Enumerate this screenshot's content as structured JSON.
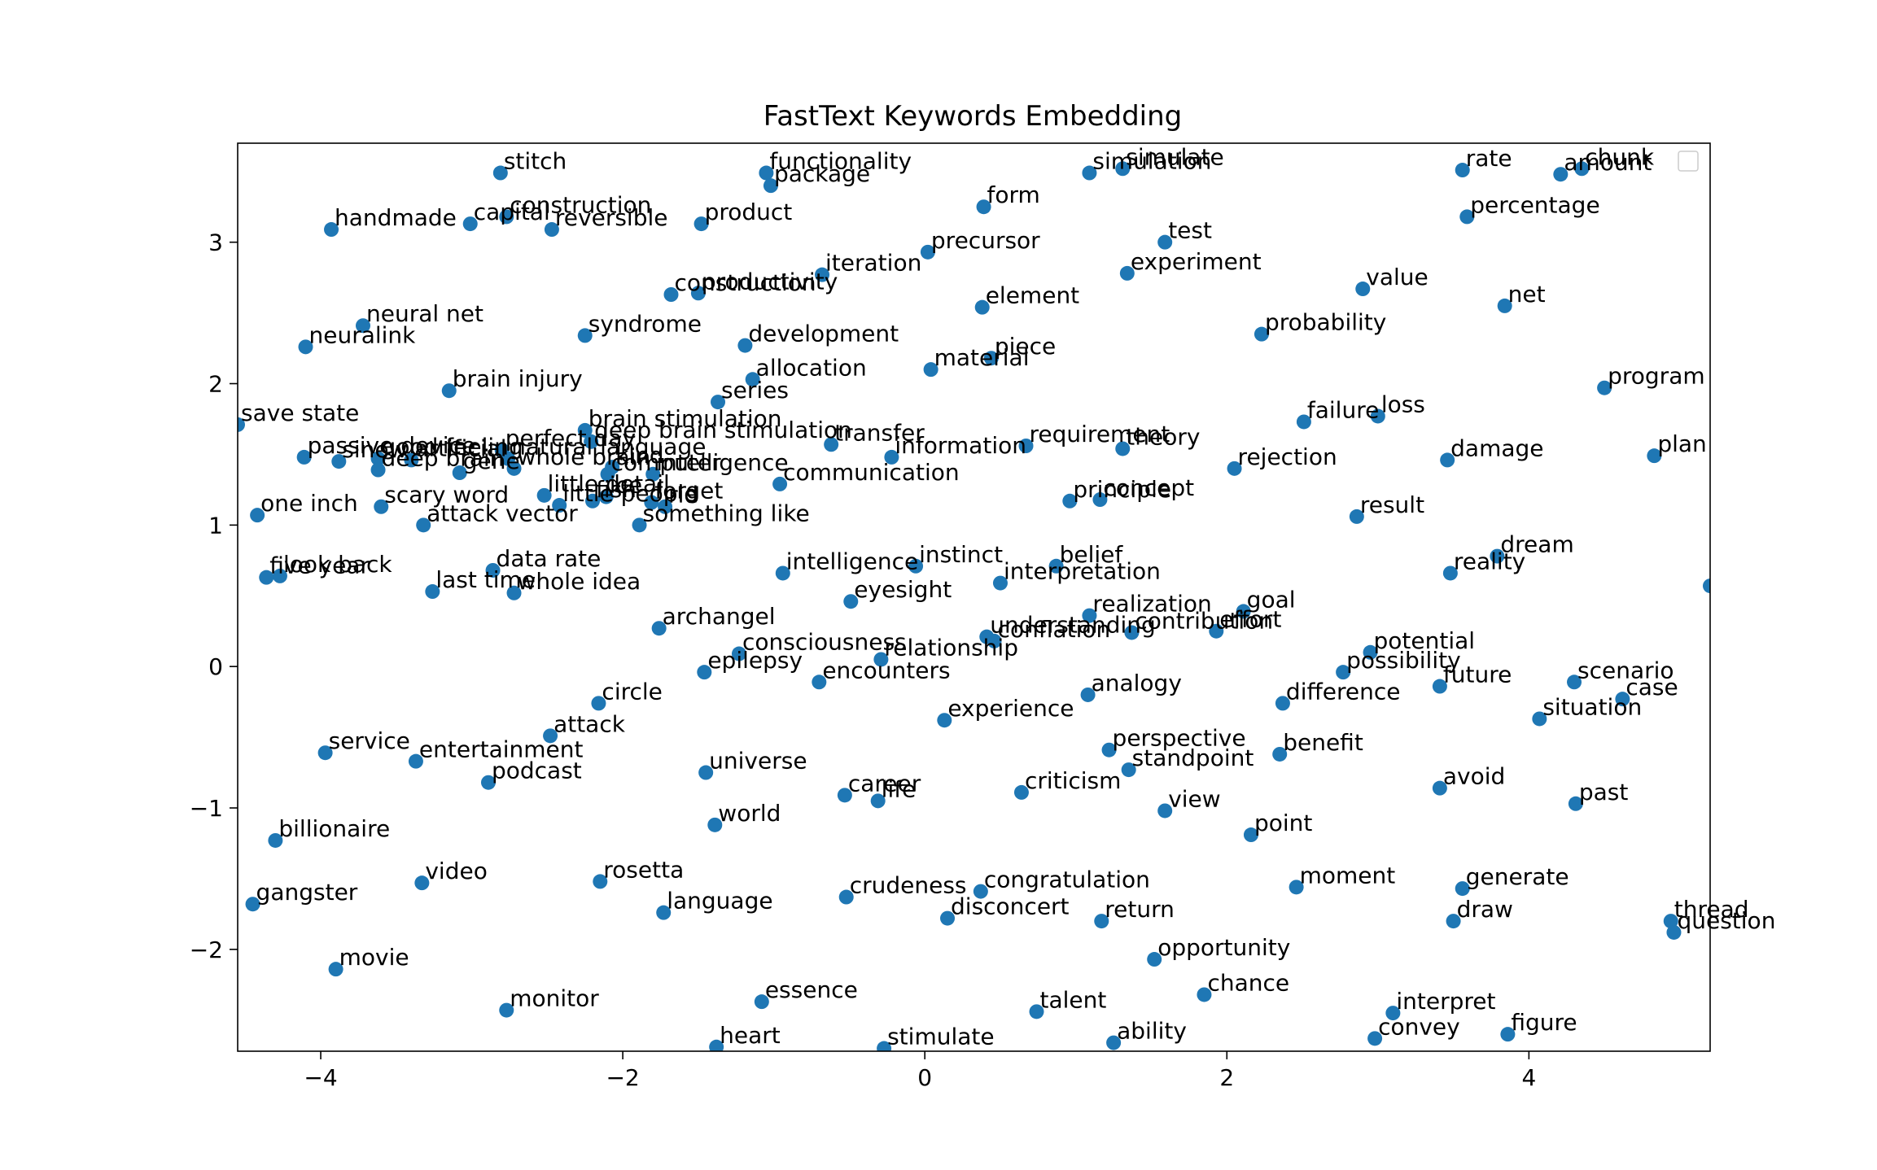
{
  "chart_data": {
    "type": "scatter",
    "title": "FastText Keywords Embedding",
    "xlabel": "",
    "ylabel": "",
    "xlim": [
      -4.55,
      5.2
    ],
    "ylim": [
      -2.72,
      3.7
    ],
    "xticks": [
      -4,
      -2,
      0,
      2,
      4
    ],
    "yticks": [
      -2,
      -1,
      0,
      1,
      2,
      3
    ],
    "xtick_labels": [
      "−4",
      "−2",
      "0",
      "2",
      "4"
    ],
    "ytick_labels": [
      "−2",
      "−1",
      "0",
      "1",
      "2",
      "3"
    ],
    "grid": false,
    "legend": "top-right (empty)",
    "marker_color": "#1f77b4",
    "points": [
      {
        "label": "stitch",
        "x": -2.81,
        "y": 3.49
      },
      {
        "label": "functionality",
        "x": -1.05,
        "y": 3.49
      },
      {
        "label": "package",
        "x": -1.02,
        "y": 3.4
      },
      {
        "label": "simulation",
        "x": 1.09,
        "y": 3.49
      },
      {
        "label": "simulate",
        "x": 1.31,
        "y": 3.52
      },
      {
        "label": "rate",
        "x": 3.56,
        "y": 3.51
      },
      {
        "label": "amount",
        "x": 4.21,
        "y": 3.48
      },
      {
        "label": "chunk",
        "x": 4.35,
        "y": 3.52
      },
      {
        "label": "handmade",
        "x": -3.93,
        "y": 3.09
      },
      {
        "label": "capital",
        "x": -3.01,
        "y": 3.13
      },
      {
        "label": "construction",
        "x": -2.77,
        "y": 3.18
      },
      {
        "label": "reversible",
        "x": -2.47,
        "y": 3.09
      },
      {
        "label": "product",
        "x": -1.48,
        "y": 3.13
      },
      {
        "label": "form",
        "x": 0.39,
        "y": 3.25
      },
      {
        "label": "percentage",
        "x": 3.59,
        "y": 3.18
      },
      {
        "label": "precursor",
        "x": 0.02,
        "y": 2.93
      },
      {
        "label": "test",
        "x": 1.59,
        "y": 3.0
      },
      {
        "label": "iteration",
        "x": -0.68,
        "y": 2.77
      },
      {
        "label": "experiment",
        "x": 1.34,
        "y": 2.78
      },
      {
        "label": "construction",
        "x": -1.68,
        "y": 2.63
      },
      {
        "label": "productivity",
        "x": -1.5,
        "y": 2.64
      },
      {
        "label": "value",
        "x": 2.9,
        "y": 2.67
      },
      {
        "label": "element",
        "x": 0.38,
        "y": 2.54
      },
      {
        "label": "net",
        "x": 3.84,
        "y": 2.55
      },
      {
        "label": "neural net",
        "x": -3.72,
        "y": 2.41
      },
      {
        "label": "neuralink",
        "x": -4.1,
        "y": 2.26
      },
      {
        "label": "syndrome",
        "x": -2.25,
        "y": 2.34
      },
      {
        "label": "development",
        "x": -1.19,
        "y": 2.27
      },
      {
        "label": "probability",
        "x": 2.23,
        "y": 2.35
      },
      {
        "label": "piece",
        "x": 0.44,
        "y": 2.18
      },
      {
        "label": "material",
        "x": 0.04,
        "y": 2.1
      },
      {
        "label": "allocation",
        "x": -1.14,
        "y": 2.03
      },
      {
        "label": "program",
        "x": 4.5,
        "y": 1.97
      },
      {
        "label": "brain injury",
        "x": -3.15,
        "y": 1.95
      },
      {
        "label": "series",
        "x": -1.37,
        "y": 1.87
      },
      {
        "label": "failure",
        "x": 2.51,
        "y": 1.73
      },
      {
        "label": "loss",
        "x": 3.0,
        "y": 1.77
      },
      {
        "label": "save state",
        "x": -4.55,
        "y": 1.71
      },
      {
        "label": "brain stimulation",
        "x": -2.25,
        "y": 1.67
      },
      {
        "label": "deep brain stimulation",
        "x": -2.21,
        "y": 1.59
      },
      {
        "label": "transfer",
        "x": -0.62,
        "y": 1.57
      },
      {
        "label": "requirement",
        "x": 0.67,
        "y": 1.56
      },
      {
        "label": "theory",
        "x": 1.31,
        "y": 1.54
      },
      {
        "label": "information",
        "x": -0.22,
        "y": 1.48
      },
      {
        "label": "plan",
        "x": 4.83,
        "y": 1.49
      },
      {
        "label": "damage",
        "x": 3.46,
        "y": 1.46
      },
      {
        "label": "passive device",
        "x": -4.11,
        "y": 1.48
      },
      {
        "label": "sinew",
        "x": -3.88,
        "y": 1.45
      },
      {
        "label": "good feeling",
        "x": -3.62,
        "y": 1.47
      },
      {
        "label": "artificial",
        "x": -3.4,
        "y": 1.46
      },
      {
        "label": "perfect day",
        "x": -2.8,
        "y": 1.53
      },
      {
        "label": "natural language",
        "x": -2.76,
        "y": 1.47
      },
      {
        "label": "deep brain",
        "x": -3.62,
        "y": 1.39
      },
      {
        "label": "gene",
        "x": -3.08,
        "y": 1.37
      },
      {
        "label": "whole brain",
        "x": -2.72,
        "y": 1.4
      },
      {
        "label": "kind",
        "x": -2.07,
        "y": 1.41
      },
      {
        "label": "computer",
        "x": -2.1,
        "y": 1.36
      },
      {
        "label": "intelligence",
        "x": -1.8,
        "y": 1.36
      },
      {
        "label": "rejection",
        "x": 2.05,
        "y": 1.4
      },
      {
        "label": "communication",
        "x": -0.96,
        "y": 1.29
      },
      {
        "label": "little detail",
        "x": -2.52,
        "y": 1.21
      },
      {
        "label": "little people",
        "x": -2.42,
        "y": 1.14
      },
      {
        "label": "fish",
        "x": -2.2,
        "y": 1.17
      },
      {
        "label": "ice",
        "x": -2.11,
        "y": 1.2
      },
      {
        "label": "forget",
        "x": -1.81,
        "y": 1.16
      },
      {
        "label": "rid",
        "x": -1.72,
        "y": 1.13
      },
      {
        "label": "principle",
        "x": 0.96,
        "y": 1.17
      },
      {
        "label": "concept",
        "x": 1.16,
        "y": 1.18
      },
      {
        "label": "one inch",
        "x": -4.42,
        "y": 1.07
      },
      {
        "label": "scary word",
        "x": -3.6,
        "y": 1.13
      },
      {
        "label": "attack vector",
        "x": -3.32,
        "y": 1.0
      },
      {
        "label": "something like",
        "x": -1.89,
        "y": 1.0
      },
      {
        "label": "result",
        "x": 2.86,
        "y": 1.06
      },
      {
        "label": "dream",
        "x": 3.79,
        "y": 0.78
      },
      {
        "label": "instinct",
        "x": -0.06,
        "y": 0.71
      },
      {
        "label": "belief",
        "x": 0.87,
        "y": 0.71
      },
      {
        "label": "reality",
        "x": 3.48,
        "y": 0.66
      },
      {
        "label": "five year",
        "x": -4.36,
        "y": 0.63
      },
      {
        "label": "look back",
        "x": -4.27,
        "y": 0.64
      },
      {
        "label": "data rate",
        "x": -2.86,
        "y": 0.68
      },
      {
        "label": "intelligence",
        "x": -0.94,
        "y": 0.66
      },
      {
        "label": "interpretation",
        "x": 0.5,
        "y": 0.59
      },
      {
        "label": "last time",
        "x": -3.26,
        "y": 0.53
      },
      {
        "label": "whole idea",
        "x": -2.72,
        "y": 0.52
      },
      {
        "label": "eyesight",
        "x": -0.49,
        "y": 0.46
      },
      {
        "label": "goal",
        "x": 2.11,
        "y": 0.39
      },
      {
        "label": "realization",
        "x": 1.09,
        "y": 0.36
      },
      {
        "label": "archangel",
        "x": -1.76,
        "y": 0.27
      },
      {
        "label": "contribution",
        "x": 1.37,
        "y": 0.24
      },
      {
        "label": "effort",
        "x": 1.93,
        "y": 0.25
      },
      {
        "label": "understanding",
        "x": 0.41,
        "y": 0.21
      },
      {
        "label": "conflation",
        "x": 0.46,
        "y": 0.18
      },
      {
        "label": "potential",
        "x": 2.95,
        "y": 0.1
      },
      {
        "label": "consciousness",
        "x": -1.23,
        "y": 0.09
      },
      {
        "label": "relationship",
        "x": -0.29,
        "y": 0.05
      },
      {
        "label": "epilepsy",
        "x": -1.46,
        "y": -0.04
      },
      {
        "label": "possibility",
        "x": 2.77,
        "y": -0.04
      },
      {
        "label": "encounters",
        "x": -0.7,
        "y": -0.11
      },
      {
        "label": "future",
        "x": 3.41,
        "y": -0.14
      },
      {
        "label": "scenario",
        "x": 4.3,
        "y": -0.11
      },
      {
        "label": "case",
        "x": 4.62,
        "y": -0.23
      },
      {
        "label": "analogy",
        "x": 1.08,
        "y": -0.2
      },
      {
        "label": "circle",
        "x": -2.16,
        "y": -0.26
      },
      {
        "label": "difference",
        "x": 2.37,
        "y": -0.26
      },
      {
        "label": "situation",
        "x": 4.07,
        "y": -0.37
      },
      {
        "label": "experience",
        "x": 0.13,
        "y": -0.38
      },
      {
        "label": "attack",
        "x": -2.48,
        "y": -0.49
      },
      {
        "label": "service",
        "x": -3.97,
        "y": -0.61
      },
      {
        "label": "perspective",
        "x": 1.22,
        "y": -0.59
      },
      {
        "label": "benefit",
        "x": 2.35,
        "y": -0.62
      },
      {
        "label": "entertainment",
        "x": -3.37,
        "y": -0.67
      },
      {
        "label": "standpoint",
        "x": 1.35,
        "y": -0.73
      },
      {
        "label": "universe",
        "x": -1.45,
        "y": -0.75
      },
      {
        "label": "podcast",
        "x": -2.89,
        "y": -0.82
      },
      {
        "label": "criticism",
        "x": 0.64,
        "y": -0.89
      },
      {
        "label": "avoid",
        "x": 3.41,
        "y": -0.86
      },
      {
        "label": "career",
        "x": -0.53,
        "y": -0.91
      },
      {
        "label": "life",
        "x": -0.31,
        "y": -0.95
      },
      {
        "label": "past",
        "x": 4.31,
        "y": -0.97
      },
      {
        "label": "view",
        "x": 1.59,
        "y": -1.02
      },
      {
        "label": "world",
        "x": -1.39,
        "y": -1.12
      },
      {
        "label": "point",
        "x": 2.16,
        "y": -1.19
      },
      {
        "label": "billionaire",
        "x": -4.3,
        "y": -1.23
      },
      {
        "label": "video",
        "x": -3.33,
        "y": -1.53
      },
      {
        "label": "rosetta",
        "x": -2.15,
        "y": -1.52
      },
      {
        "label": "moment",
        "x": 2.46,
        "y": -1.56
      },
      {
        "label": "generate",
        "x": 3.56,
        "y": -1.57
      },
      {
        "label": "crudeness",
        "x": -0.52,
        "y": -1.63
      },
      {
        "label": "congratulation",
        "x": 0.37,
        "y": -1.59
      },
      {
        "label": "gangster",
        "x": -4.45,
        "y": -1.68
      },
      {
        "label": "language",
        "x": -1.73,
        "y": -1.74
      },
      {
        "label": "disconcert",
        "x": 0.15,
        "y": -1.78
      },
      {
        "label": "return",
        "x": 1.17,
        "y": -1.8
      },
      {
        "label": "draw",
        "x": 3.5,
        "y": -1.8
      },
      {
        "label": "thread",
        "x": 4.94,
        "y": -1.8
      },
      {
        "label": "question",
        "x": 4.96,
        "y": -1.88
      },
      {
        "label": "opportunity",
        "x": 1.52,
        "y": -2.07
      },
      {
        "label": "movie",
        "x": -3.9,
        "y": -2.14
      },
      {
        "label": "chance",
        "x": 1.85,
        "y": -2.32
      },
      {
        "label": "essence",
        "x": -1.08,
        "y": -2.37
      },
      {
        "label": "monitor",
        "x": -2.77,
        "y": -2.43
      },
      {
        "label": "talent",
        "x": 0.74,
        "y": -2.44
      },
      {
        "label": "interpret",
        "x": 3.1,
        "y": -2.45
      },
      {
        "label": "heart",
        "x": -1.38,
        "y": -2.69
      },
      {
        "label": "stimulate",
        "x": -0.27,
        "y": -2.7
      },
      {
        "label": "ability",
        "x": 1.25,
        "y": -2.66
      },
      {
        "label": "convey",
        "x": 2.98,
        "y": -2.63
      },
      {
        "label": "figure",
        "x": 3.86,
        "y": -2.6
      },
      {
        "label": "",
        "x": 5.2,
        "y": 0.57
      },
      {
        "label": "",
        "x": 3.36,
        "y": -2.8
      }
    ]
  }
}
